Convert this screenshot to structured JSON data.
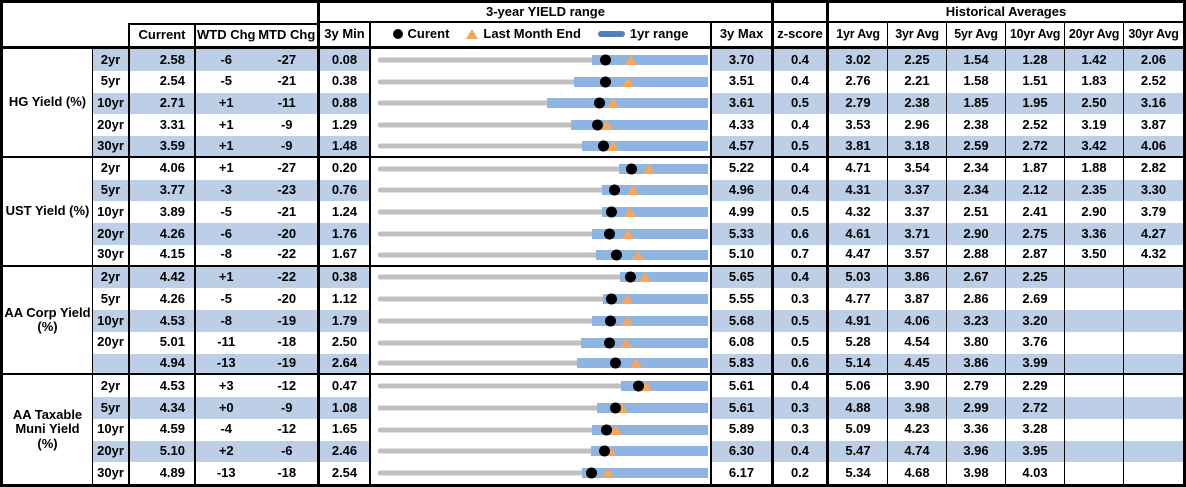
{
  "header": {
    "range_title": "3-year YIELD range",
    "hist_title": "Historical Averages",
    "col_current": "Current",
    "col_wtd": "WTD Chg",
    "col_mtd": "MTD Chg",
    "col_3y_min": "3y Min",
    "col_3y_max": "3y Max",
    "col_zscore": "z-score",
    "avg_cols": [
      "1yr Avg",
      "3yr Avg",
      "5yr Avg",
      "10yr Avg",
      "20yr Avg",
      "30yr Avg"
    ],
    "legend": {
      "current": "Curent",
      "last_month": "Last Month End",
      "range": "1yr range"
    }
  },
  "colors": {
    "stripe": "#BCCFE7",
    "bar_1yr_range": "#8EB4E2",
    "legend_bar": "#4F81BD",
    "last_month_triangle": "#F9A65A",
    "track_gray": "#C0C0C0",
    "border": "#000000"
  },
  "chart_data": {
    "type": "bullet-range",
    "description": "Each row: gray track spans 3y Min..3y Max; blue bar = 1yr range (estimated endpoints); black dot = Current yield; orange triangle = Last Month End (Current - MTD chg).",
    "groups": [
      {
        "label": "HG Yield (%)",
        "rows": [
          {
            "tenor": "2yr",
            "current": "2.58",
            "wtd": "-6",
            "mtd": "-27",
            "min3y": "0.08",
            "max3y": "3.70",
            "zscore": "0.4",
            "avgs": [
              "3.02",
              "2.25",
              "1.54",
              "1.28",
              "1.42",
              "2.06"
            ],
            "yr1_min": 2.43,
            "yr1_max": 3.7,
            "last_month_end": 2.85
          },
          {
            "tenor": "5yr",
            "current": "2.54",
            "wtd": "-5",
            "mtd": "-21",
            "min3y": "0.38",
            "max3y": "3.51",
            "zscore": "0.4",
            "avgs": [
              "2.76",
              "2.21",
              "1.58",
              "1.51",
              "1.83",
              "2.52"
            ],
            "yr1_min": 2.24,
            "yr1_max": 3.51,
            "last_month_end": 2.75
          },
          {
            "tenor": "10yr",
            "current": "2.71",
            "wtd": "+1",
            "mtd": "-11",
            "min3y": "0.88",
            "max3y": "3.61",
            "zscore": "0.5",
            "avgs": [
              "2.79",
              "2.38",
              "1.85",
              "1.95",
              "2.50",
              "3.16"
            ],
            "yr1_min": 2.28,
            "yr1_max": 3.61,
            "last_month_end": 2.82
          },
          {
            "tenor": "20yr",
            "current": "3.31",
            "wtd": "+1",
            "mtd": "-9",
            "min3y": "1.29",
            "max3y": "4.33",
            "zscore": "0.4",
            "avgs": [
              "3.53",
              "2.96",
              "2.38",
              "2.52",
              "3.19",
              "3.87"
            ],
            "yr1_min": 3.07,
            "yr1_max": 4.33,
            "last_month_end": 3.4
          },
          {
            "tenor": "30yr",
            "current": "3.59",
            "wtd": "+1",
            "mtd": "-9",
            "min3y": "1.48",
            "max3y": "4.57",
            "zscore": "0.5",
            "avgs": [
              "3.81",
              "3.18",
              "2.59",
              "2.72",
              "3.42",
              "4.06"
            ],
            "yr1_min": 3.39,
            "yr1_max": 4.57,
            "last_month_end": 3.68
          }
        ]
      },
      {
        "label": "UST Yield (%)",
        "rows": [
          {
            "tenor": "2yr",
            "current": "4.06",
            "wtd": "+1",
            "mtd": "-27",
            "min3y": "0.20",
            "max3y": "5.22",
            "zscore": "0.4",
            "avgs": [
              "4.71",
              "3.54",
              "2.34",
              "1.87",
              "1.88",
              "2.82"
            ],
            "yr1_min": 3.86,
            "yr1_max": 5.22,
            "last_month_end": 4.33
          },
          {
            "tenor": "5yr",
            "current": "3.77",
            "wtd": "-3",
            "mtd": "-23",
            "min3y": "0.76",
            "max3y": "4.96",
            "zscore": "0.4",
            "avgs": [
              "4.31",
              "3.37",
              "2.34",
              "2.12",
              "2.35",
              "3.30"
            ],
            "yr1_min": 3.61,
            "yr1_max": 4.96,
            "last_month_end": 4.0
          },
          {
            "tenor": "10yr",
            "current": "3.89",
            "wtd": "-5",
            "mtd": "-21",
            "min3y": "1.24",
            "max3y": "4.99",
            "zscore": "0.5",
            "avgs": [
              "4.32",
              "3.37",
              "2.51",
              "2.41",
              "2.90",
              "3.79"
            ],
            "yr1_min": 3.78,
            "yr1_max": 4.99,
            "last_month_end": 4.1
          },
          {
            "tenor": "20yr",
            "current": "4.26",
            "wtd": "-6",
            "mtd": "-20",
            "min3y": "1.76",
            "max3y": "5.33",
            "zscore": "0.6",
            "avgs": [
              "4.61",
              "3.71",
              "2.90",
              "2.75",
              "3.36",
              "4.27"
            ],
            "yr1_min": 4.07,
            "yr1_max": 5.33,
            "last_month_end": 4.46
          },
          {
            "tenor": "30yr",
            "current": "4.15",
            "wtd": "-8",
            "mtd": "-22",
            "min3y": "1.67",
            "max3y": "5.10",
            "zscore": "0.7",
            "avgs": [
              "4.47",
              "3.57",
              "2.88",
              "2.87",
              "3.50",
              "4.32"
            ],
            "yr1_min": 3.94,
            "yr1_max": 5.1,
            "last_month_end": 4.37
          }
        ]
      },
      {
        "label": "AA Corp Yield\n(%)",
        "rows": [
          {
            "tenor": "2yr",
            "current": "4.42",
            "wtd": "+1",
            "mtd": "-22",
            "min3y": "0.38",
            "max3y": "5.65",
            "zscore": "0.4",
            "avgs": [
              "5.03",
              "3.86",
              "2.67",
              "2.25",
              "",
              ""
            ],
            "yr1_min": 4.25,
            "yr1_max": 5.65,
            "last_month_end": 4.64
          },
          {
            "tenor": "5yr",
            "current": "4.26",
            "wtd": "-5",
            "mtd": "-20",
            "min3y": "1.12",
            "max3y": "5.55",
            "zscore": "0.3",
            "avgs": [
              "4.77",
              "3.87",
              "2.86",
              "2.69",
              "",
              ""
            ],
            "yr1_min": 4.14,
            "yr1_max": 5.55,
            "last_month_end": 4.46
          },
          {
            "tenor": "10yr",
            "current": "4.53",
            "wtd": "-8",
            "mtd": "-19",
            "min3y": "1.79",
            "max3y": "5.68",
            "zscore": "0.5",
            "avgs": [
              "4.91",
              "4.06",
              "3.23",
              "3.20",
              "",
              ""
            ],
            "yr1_min": 4.31,
            "yr1_max": 5.68,
            "last_month_end": 4.72
          },
          {
            "tenor": "20yr",
            "current": "5.01",
            "wtd": "-11",
            "mtd": "-18",
            "min3y": "2.50",
            "max3y": "6.08",
            "zscore": "0.5",
            "avgs": [
              "5.28",
              "4.54",
              "3.80",
              "3.76",
              "",
              ""
            ],
            "yr1_min": 4.7,
            "yr1_max": 6.08,
            "last_month_end": 5.19
          },
          {
            "tenor": "",
            "current": "4.94",
            "wtd": "-13",
            "mtd": "-19",
            "min3y": "2.64",
            "max3y": "5.83",
            "zscore": "0.6",
            "avgs": [
              "5.14",
              "4.45",
              "3.86",
              "3.99",
              "",
              ""
            ],
            "yr1_min": 4.56,
            "yr1_max": 5.83,
            "last_month_end": 5.13
          }
        ]
      },
      {
        "label": "AA Taxable\nMuni Yield\n(%)",
        "rows": [
          {
            "tenor": "2yr",
            "current": "4.53",
            "wtd": "+3",
            "mtd": "-12",
            "min3y": "0.47",
            "max3y": "5.61",
            "zscore": "0.4",
            "avgs": [
              "5.06",
              "3.90",
              "2.79",
              "2.29",
              "",
              ""
            ],
            "yr1_min": 4.26,
            "yr1_max": 5.61,
            "last_month_end": 4.65
          },
          {
            "tenor": "5yr",
            "current": "4.34",
            "wtd": "+0",
            "mtd": "-9",
            "min3y": "1.08",
            "max3y": "5.61",
            "zscore": "0.3",
            "avgs": [
              "4.88",
              "3.98",
              "2.99",
              "2.72",
              "",
              ""
            ],
            "yr1_min": 4.08,
            "yr1_max": 5.61,
            "last_month_end": 4.43
          },
          {
            "tenor": "10yr",
            "current": "4.59",
            "wtd": "-4",
            "mtd": "-12",
            "min3y": "1.65",
            "max3y": "5.89",
            "zscore": "0.3",
            "avgs": [
              "5.09",
              "4.23",
              "3.36",
              "3.28",
              "",
              ""
            ],
            "yr1_min": 4.4,
            "yr1_max": 5.89,
            "last_month_end": 4.71
          },
          {
            "tenor": "20yr",
            "current": "5.10",
            "wtd": "+2",
            "mtd": "-6",
            "min3y": "2.46",
            "max3y": "6.30",
            "zscore": "0.4",
            "avgs": [
              "5.47",
              "4.74",
              "3.96",
              "3.95",
              "",
              ""
            ],
            "yr1_min": 4.94,
            "yr1_max": 6.3,
            "last_month_end": 5.16
          },
          {
            "tenor": "30yr",
            "current": "4.89",
            "wtd": "-13",
            "mtd": "-18",
            "min3y": "2.54",
            "max3y": "6.17",
            "zscore": "0.2",
            "avgs": [
              "5.34",
              "4.68",
              "3.98",
              "4.03",
              "",
              ""
            ],
            "yr1_min": 4.78,
            "yr1_max": 6.17,
            "last_month_end": 5.07
          }
        ]
      }
    ]
  }
}
